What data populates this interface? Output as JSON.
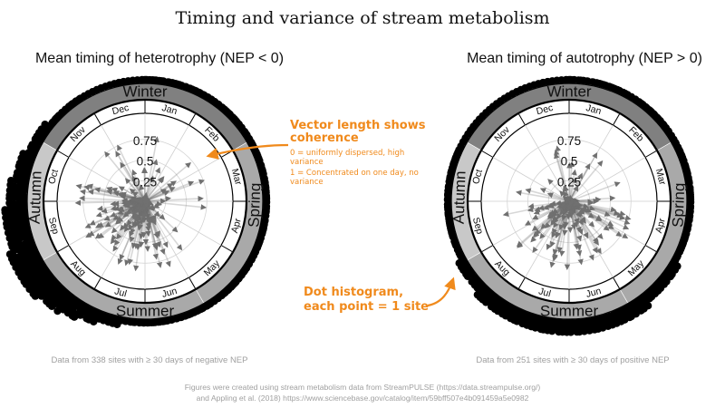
{
  "figure": {
    "title": "Timing and variance of stream metabolism",
    "credit_line1": "Figures were created using stream metabolism data from StreamPULSE (https://data.streampulse.org/)",
    "credit_line2": "and Appling et al. (2018) https://www.sciencebase.gov/catalog/item/59bff507e4b091459a5e0982"
  },
  "annotations": {
    "vector_title_1": "Vector length shows",
    "vector_title_2": "coherence",
    "zero_line_1": "0 = uniformly dispersed, high",
    "zero_line_2": "variance",
    "one_line_1": "1 = Concentrated on one day, no",
    "one_line_2": "variance",
    "dot_title_1": "Dot histogram,",
    "dot_title_2": "each point = 1 site"
  },
  "colors": {
    "accent": "#f08a1c",
    "ring_light": "#c8c8c8",
    "ring_mid": "#a9a9a9",
    "ring_dark": "#808080",
    "dots": "#000000",
    "arrows": "#707070"
  },
  "chart_data": [
    {
      "type": "polar-vector",
      "title": "Mean timing of heterotrophy (NEP < 0)",
      "caption": "Data from 338 sites with ≥ 30 days of negative NEP",
      "n_sites": 338,
      "radial_ticks": [
        0.25,
        0.5,
        0.75
      ],
      "radial_tick_labels": [
        "0.25",
        "0.5",
        "0.75"
      ],
      "months": [
        "Jan",
        "Feb",
        "Mar",
        "Apr",
        "May",
        "Jun",
        "Jul",
        "Aug",
        "Sep",
        "Oct",
        "Nov",
        "Dec"
      ],
      "seasons": [
        "Winter",
        "Spring",
        "Summer",
        "Autumn"
      ],
      "dot_histogram_peak_months": [
        "Jul",
        "Aug",
        "Sep",
        "Oct"
      ],
      "vector_length_range": [
        0,
        0.9
      ]
    },
    {
      "type": "polar-vector",
      "title": "Mean timing of autotrophy (NEP > 0)",
      "caption": "Data from 251 sites with ≥ 30 days of positive NEP",
      "n_sites": 251,
      "radial_ticks": [
        0.25,
        0.5,
        0.75
      ],
      "radial_tick_labels": [
        "0.25",
        "0.5",
        "0.75"
      ],
      "months": [
        "Jan",
        "Feb",
        "Mar",
        "Apr",
        "May",
        "Jun",
        "Jul",
        "Aug",
        "Sep",
        "Oct",
        "Nov",
        "Dec"
      ],
      "seasons": [
        "Winter",
        "Spring",
        "Summer",
        "Autumn"
      ],
      "dot_histogram_peak_months": [
        "Apr",
        "May",
        "Jun",
        "Jul",
        "Aug"
      ],
      "vector_length_range": [
        0,
        0.9
      ]
    }
  ]
}
